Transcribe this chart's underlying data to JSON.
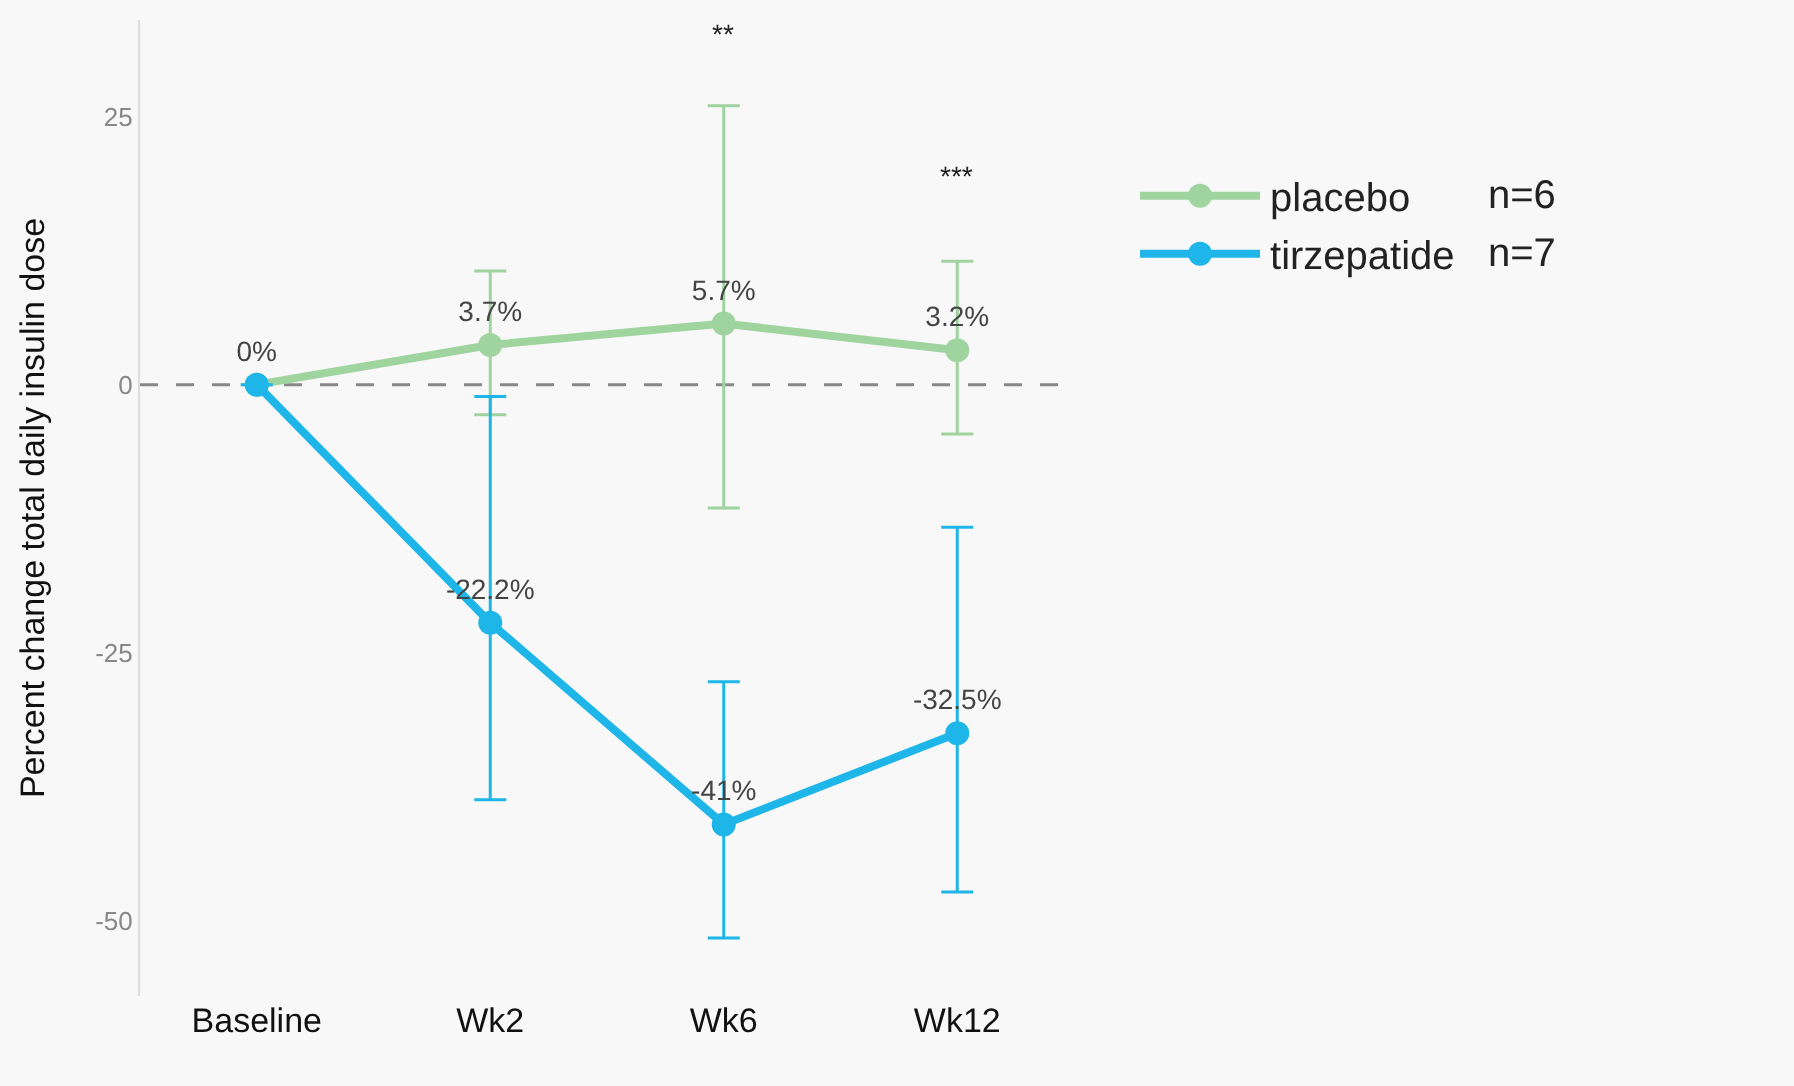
{
  "chart_data": {
    "type": "line",
    "ylabel": "Percent change total daily insulin dose",
    "categories": [
      "Baseline",
      "Wk2",
      "Wk6",
      "Wk12"
    ],
    "ylim": [
      -57,
      34
    ],
    "yticks": [
      -50,
      -25,
      0,
      25
    ],
    "series": [
      {
        "name": "placebo",
        "color": "#9fd49f",
        "values": [
          0,
          3.7,
          5.7,
          3.2
        ],
        "value_labels": [
          null,
          "3.7%",
          "5.7%",
          "3.2%"
        ],
        "errors": [
          null,
          [
            -2.8,
            10.6
          ],
          [
            -11.5,
            26
          ],
          [
            -4.6,
            11.5
          ]
        ]
      },
      {
        "name": "tirzepatide",
        "color": "#1eb6e8",
        "values": [
          0,
          -22.2,
          -41,
          -32.5
        ],
        "value_labels": [
          "0%",
          "-22.2%",
          "-41%",
          "-32.5%"
        ],
        "errors": [
          null,
          [
            -38.7,
            -1.1
          ],
          [
            -51.6,
            -27.7
          ],
          [
            -47.3,
            -13.3
          ]
        ]
      }
    ],
    "ref_lines": [
      {
        "axis": "y",
        "value": 0,
        "color": "#888888",
        "line_style": "dashed"
      }
    ],
    "annotations": [
      "**",
      "***",
      "n=6",
      "n=7"
    ],
    "marker": "circle",
    "line_style": "solid",
    "legend": "right",
    "grid": false
  }
}
